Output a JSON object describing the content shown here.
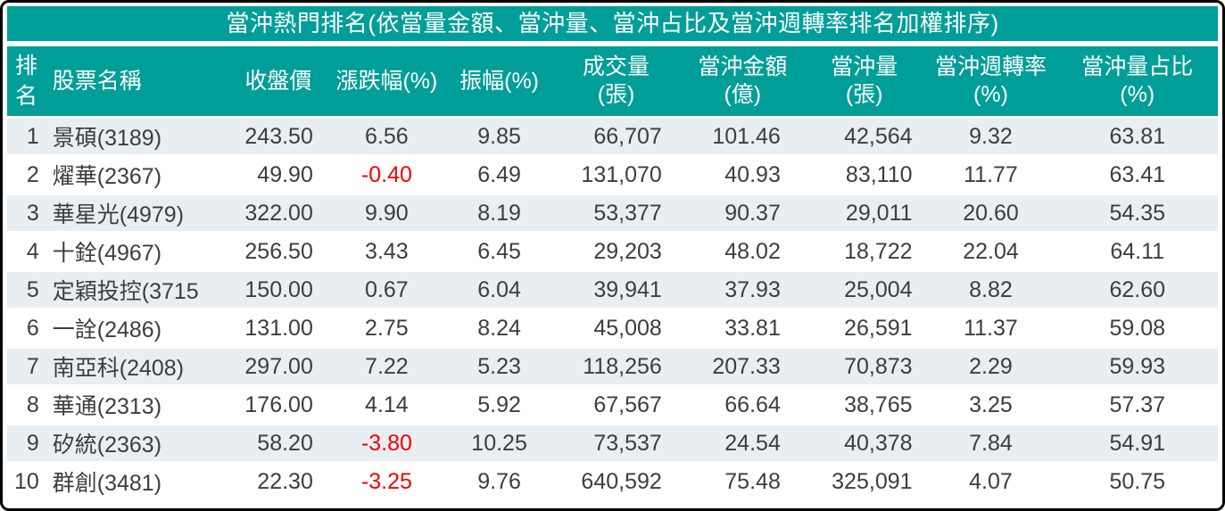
{
  "colors": {
    "teal_header": "#009e98",
    "row_stripe": "#e8eef1",
    "negative_value": "#f40000",
    "body_text": "#3d3d3d",
    "header_text": "#ffffff",
    "outer_border": "#000000"
  },
  "chart_data": {
    "type": "table",
    "title": "當沖熱門排名(依當量金額、當沖量、當沖占比及當沖週轉率排名加權排序)",
    "legend_position": "none",
    "grid": "striped-rows",
    "columns": [
      {
        "key": "rank",
        "label_lines": [
          "排",
          "名"
        ],
        "label": "排名",
        "align": "right",
        "width": "3.3%"
      },
      {
        "key": "name",
        "label_lines": [
          "股票名稱"
        ],
        "label": "股票名稱",
        "align": "left",
        "width": "15.2%"
      },
      {
        "key": "close",
        "label_lines": [
          "收盤價"
        ],
        "label": "收盤價",
        "align": "right",
        "width": "7.8%"
      },
      {
        "key": "change",
        "label_lines": [
          "漲跌幅(%)"
        ],
        "label": "漲跌幅(%)",
        "align": "center",
        "width": "10.1%"
      },
      {
        "key": "amp",
        "label_lines": [
          "振幅(%)"
        ],
        "label": "振幅(%)",
        "align": "center",
        "width": "8.5%"
      },
      {
        "key": "volume",
        "label_lines": [
          "成交量",
          "(張)"
        ],
        "label": "成交量(張)",
        "align": "right",
        "width": "10.8%"
      },
      {
        "key": "amount",
        "label_lines": [
          "當沖金額",
          "(億)"
        ],
        "label": "當沖金額(億)",
        "align": "right",
        "width": "10.1%"
      },
      {
        "key": "dayvol",
        "label_lines": [
          "當沖量",
          "(張)"
        ],
        "label": "當沖量(張)",
        "align": "right",
        "width": "10.0%"
      },
      {
        "key": "turnover",
        "label_lines": [
          "當沖週轉率",
          "(%)"
        ],
        "label": "當沖週轉率(%)",
        "align": "center",
        "width": "10.9%"
      },
      {
        "key": "ratio",
        "label_lines": [
          "當沖量占比",
          "(%)"
        ],
        "label": "當沖量占比(%)",
        "align": "center",
        "width": "13.3%"
      }
    ],
    "rows": [
      [
        "1",
        "景碩(3189)",
        "243.50",
        "6.56",
        "9.85",
        "66,707",
        "101.46",
        "42,564",
        "9.32",
        "63.81"
      ],
      [
        "2",
        "燿華(2367)",
        "49.90",
        "-0.40",
        "6.49",
        "131,070",
        "40.93",
        "83,110",
        "11.77",
        "63.41"
      ],
      [
        "3",
        "華星光(4979)",
        "322.00",
        "9.90",
        "8.19",
        "53,377",
        "90.37",
        "29,011",
        "20.60",
        "54.35"
      ],
      [
        "4",
        "十銓(4967)",
        "256.50",
        "3.43",
        "6.45",
        "29,203",
        "48.02",
        "18,722",
        "22.04",
        "64.11"
      ],
      [
        "5",
        "定穎投控(3715",
        "150.00",
        "0.67",
        "6.04",
        "39,941",
        "37.93",
        "25,004",
        "8.82",
        "62.60"
      ],
      [
        "6",
        "一詮(2486)",
        "131.00",
        "2.75",
        "8.24",
        "45,008",
        "33.81",
        "26,591",
        "11.37",
        "59.08"
      ],
      [
        "7",
        "南亞科(2408)",
        "297.00",
        "7.22",
        "5.23",
        "118,256",
        "207.33",
        "70,873",
        "2.29",
        "59.93"
      ],
      [
        "8",
        "華通(2313)",
        "176.00",
        "4.14",
        "5.92",
        "67,567",
        "66.64",
        "38,765",
        "3.25",
        "57.37"
      ],
      [
        "9",
        "矽統(2363)",
        "58.20",
        "-3.80",
        "10.25",
        "73,537",
        "24.54",
        "40,378",
        "7.84",
        "54.91"
      ],
      [
        "10",
        "群創(3481)",
        "22.30",
        "-3.25",
        "9.76",
        "640,592",
        "75.48",
        "325,091",
        "4.07",
        "50.75"
      ]
    ]
  }
}
